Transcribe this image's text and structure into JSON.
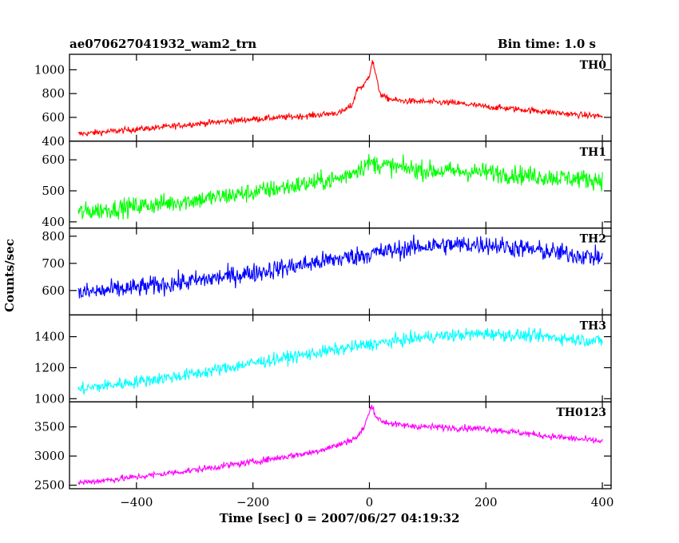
{
  "header": {
    "title": "ae070627041932_wam2_trn",
    "bin_time": "Bin time: 1.0 s"
  },
  "chart_data": {
    "type": "line",
    "title": "ae070627041932_wam2_trn",
    "subtitle": "Bin time: 1.0 s",
    "xlabel": "Time [sec] 0 = 2007/06/27 04:19:32",
    "ylabel": "Counts/sec",
    "xlim": [
      -515,
      415
    ],
    "x_ticks": [
      -400,
      -200,
      0,
      200,
      400
    ],
    "x_tick_labels": [
      "−400",
      "−200",
      "0",
      "200",
      "400"
    ],
    "grid": false,
    "panels": [
      {
        "name": "TH0",
        "color": "#ff0000",
        "ylim": [
          400,
          1130
        ],
        "y_ticks": [
          400,
          600,
          800,
          1000
        ],
        "x": [
          -500,
          -450,
          -400,
          -350,
          -300,
          -250,
          -200,
          -150,
          -100,
          -50,
          -30,
          -20,
          -10,
          0,
          5,
          10,
          15,
          20,
          30,
          50,
          100,
          150,
          200,
          250,
          300,
          350,
          400
        ],
        "y": [
          460,
          480,
          500,
          520,
          545,
          565,
          585,
          600,
          615,
          640,
          700,
          850,
          860,
          960,
          1080,
          980,
          860,
          790,
          760,
          740,
          730,
          720,
          690,
          670,
          650,
          625,
          610
        ],
        "noise": 25
      },
      {
        "name": "TH1",
        "color": "#00ff00",
        "ylim": [
          380,
          660
        ],
        "y_ticks": [
          400,
          500,
          600
        ],
        "x": [
          -500,
          -400,
          -300,
          -200,
          -100,
          -50,
          0,
          50,
          100,
          200,
          300,
          400
        ],
        "y": [
          430,
          450,
          470,
          495,
          525,
          540,
          590,
          575,
          565,
          560,
          545,
          535
        ],
        "noise": 30
      },
      {
        "name": "TH2",
        "color": "#0000ff",
        "ylim": [
          510,
          830
        ],
        "y_ticks": [
          600,
          700,
          800
        ],
        "x": [
          -500,
          -400,
          -300,
          -200,
          -100,
          0,
          100,
          200,
          300,
          400
        ],
        "y": [
          590,
          610,
          635,
          665,
          700,
          735,
          765,
          770,
          745,
          720
        ],
        "noise": 35
      },
      {
        "name": "TH3",
        "color": "#00ffff",
        "ylim": [
          980,
          1540
        ],
        "y_ticks": [
          1000,
          1200,
          1400
        ],
        "x": [
          -500,
          -400,
          -300,
          -200,
          -100,
          0,
          100,
          200,
          300,
          400
        ],
        "y": [
          1060,
          1110,
          1160,
          1230,
          1290,
          1350,
          1400,
          1420,
          1400,
          1370
        ],
        "noise": 40
      },
      {
        "name": "TH0123",
        "color": "#ff00ff",
        "ylim": [
          2440,
          3930
        ],
        "y_ticks": [
          2500,
          3000,
          3500
        ],
        "x": [
          -500,
          -400,
          -300,
          -200,
          -100,
          -50,
          -20,
          -10,
          0,
          5,
          10,
          20,
          50,
          100,
          200,
          300,
          400
        ],
        "y": [
          2540,
          2640,
          2760,
          2900,
          3060,
          3200,
          3330,
          3480,
          3750,
          3880,
          3700,
          3600,
          3530,
          3500,
          3470,
          3350,
          3250
        ],
        "noise": 55
      }
    ]
  }
}
